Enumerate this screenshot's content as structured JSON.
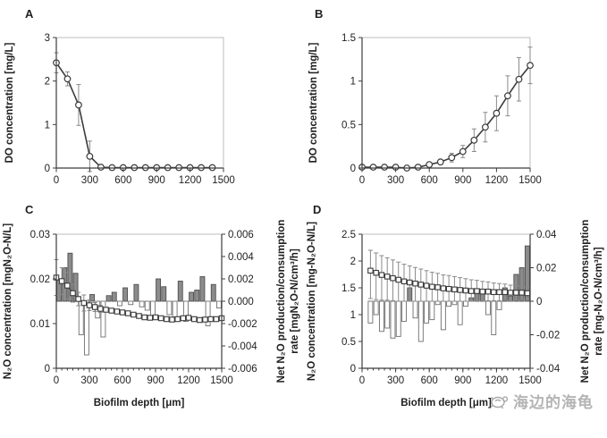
{
  "watermark": {
    "text": "海边的海龟"
  },
  "colors": {
    "line": "#3b3b3b",
    "marker_fill": "#ffffff",
    "error": "#8a8a8a",
    "bar_dark_fill": "#8c8c8c",
    "bar_dark_stroke": "#4f4f4f",
    "bar_light_fill": "#ffffff",
    "bar_light_stroke": "#6e6e6e",
    "axis": "#3c3c3c",
    "box": "#bdbdbd",
    "text": "#1f1f1f",
    "watermark": "#a8a8a8"
  },
  "chart_data": [
    {
      "id": "A",
      "panel_label": "A",
      "type": "line",
      "xlim": [
        0,
        1500
      ],
      "x_ticks": [
        0,
        300,
        600,
        900,
        1200,
        1500
      ],
      "x_tick_labels": [
        "0",
        "300",
        "600",
        "900",
        "1200",
        "1500"
      ],
      "xlabel": "",
      "left": {
        "label": "DO concentration [mg/L]",
        "lim": [
          0,
          3
        ],
        "ticks": [
          0,
          1,
          2,
          3
        ],
        "tick_labels": [
          "0",
          "1",
          "2",
          "3"
        ]
      },
      "marker": "circle",
      "line": {
        "x": [
          0,
          100,
          200,
          300,
          400,
          500,
          600,
          700,
          800,
          900,
          1000,
          1100,
          1200,
          1300,
          1400
        ],
        "y": [
          2.42,
          2.05,
          1.45,
          0.27,
          0.02,
          0.01,
          0.01,
          0.01,
          0.01,
          0.01,
          0.01,
          0.01,
          0.01,
          0.01,
          0.01
        ],
        "yerr": [
          0.23,
          0.16,
          0.47,
          0.35,
          0,
          0,
          0,
          0,
          0,
          0,
          0,
          0,
          0,
          0,
          0
        ]
      }
    },
    {
      "id": "B",
      "panel_label": "B",
      "type": "line",
      "xlim": [
        0,
        1500
      ],
      "x_ticks": [
        0,
        300,
        600,
        900,
        1200,
        1500
      ],
      "x_tick_labels": [
        "0",
        "300",
        "600",
        "900",
        "1200",
        "1500"
      ],
      "xlabel": "",
      "left": {
        "label": "DO concentration [mg/L]",
        "lim": [
          0,
          1.5
        ],
        "ticks": [
          0,
          0.5,
          1,
          1.5
        ],
        "tick_labels": [
          "0",
          "0.5",
          "1",
          "1.5"
        ]
      },
      "marker": "circle",
      "line": {
        "x": [
          0,
          100,
          200,
          300,
          400,
          500,
          600,
          700,
          800,
          900,
          1000,
          1100,
          1200,
          1300,
          1400,
          1500
        ],
        "y": [
          0.01,
          0.01,
          0.01,
          0.01,
          0.0,
          0.01,
          0.04,
          0.07,
          0.12,
          0.19,
          0.32,
          0.47,
          0.63,
          0.83,
          1.02,
          1.18
        ],
        "yerr": [
          0,
          0,
          0,
          0,
          0,
          0,
          0.01,
          0.02,
          0.05,
          0.07,
          0.13,
          0.17,
          0.2,
          0.23,
          0.25,
          0.21
        ]
      }
    },
    {
      "id": "C",
      "panel_label": "C",
      "type": "line+bar",
      "xlim": [
        0,
        1500
      ],
      "x_ticks": [
        0,
        300,
        600,
        900,
        1200,
        1500
      ],
      "x_tick_labels": [
        "0",
        "300",
        "600",
        "900",
        "1200",
        "1500"
      ],
      "x_minor_step": 50,
      "xlabel": "Biofilm depth [μm]",
      "left": {
        "label": "N₂O concentration [mgN₂O-N/L]",
        "lim": [
          0,
          0.03
        ],
        "ticks": [
          0,
          0.01,
          0.02,
          0.03
        ],
        "tick_labels": [
          "0",
          "0.01",
          "0.02",
          "0.03"
        ]
      },
      "right": {
        "label_lines": [
          "Net N₂O production/consumption",
          "rate [mgN₂O-N/cm³/h]"
        ],
        "lim": [
          -0.006,
          0.006
        ],
        "ticks": [
          0.006,
          0.004,
          0.002,
          0,
          -0.002,
          -0.004,
          -0.006
        ],
        "tick_labels": [
          "0.006",
          "0.004",
          "0.002",
          "0.000",
          "-0.002",
          "-0.004",
          "-0.006"
        ]
      },
      "marker": "square",
      "line": {
        "x": [
          0,
          50,
          100,
          150,
          200,
          250,
          300,
          350,
          400,
          450,
          500,
          550,
          600,
          650,
          700,
          750,
          800,
          850,
          900,
          950,
          1000,
          1050,
          1100,
          1150,
          1200,
          1250,
          1300,
          1350,
          1400,
          1450,
          1500
        ],
        "y": [
          0.0203,
          0.0195,
          0.0185,
          0.0168,
          0.0155,
          0.0146,
          0.0141,
          0.0137,
          0.0133,
          0.0131,
          0.0129,
          0.0127,
          0.0125,
          0.0123,
          0.012,
          0.0117,
          0.0114,
          0.0113,
          0.0114,
          0.0112,
          0.011,
          0.0109,
          0.011,
          0.0112,
          0.0113,
          0.011,
          0.0108,
          0.0109,
          0.011,
          0.011,
          0.0112
        ],
        "yerr": [
          0.004,
          0.003,
          0.003,
          0.002,
          0.0015,
          0.0018,
          0.0012,
          0.001,
          0.0008,
          0,
          0,
          0,
          0,
          0,
          0,
          0,
          0,
          0,
          0,
          0,
          0,
          0,
          0,
          0,
          0,
          0,
          0,
          0,
          0,
          0,
          0
        ]
      },
      "bars": {
        "axis": "right",
        "x": [
          25,
          75,
          125,
          175,
          225,
          275,
          325,
          375,
          425,
          475,
          525,
          575,
          625,
          675,
          725,
          775,
          825,
          875,
          925,
          975,
          1025,
          1075,
          1125,
          1175,
          1225,
          1275,
          1325,
          1375,
          1425,
          1475
        ],
        "values": [
          0.002,
          0.003,
          0.0043,
          0.0025,
          -0.003,
          -0.0048,
          0.0006,
          -0.0015,
          -0.0032,
          0.0005,
          0.0008,
          -0.0004,
          0.0012,
          -0.0003,
          0.0015,
          -0.0005,
          -0.0008,
          -0.0015,
          0.002,
          0.0013,
          -0.0012,
          -0.0014,
          0.0018,
          -0.0018,
          0.0008,
          0.001,
          0.0022,
          -0.0022,
          0.0015,
          -0.0006
        ]
      }
    },
    {
      "id": "D",
      "panel_label": "D",
      "type": "line+bar",
      "xlim": [
        0,
        1500
      ],
      "x_ticks": [
        0,
        300,
        600,
        900,
        1200,
        1500
      ],
      "x_tick_labels": [
        "0",
        "300",
        "600",
        "900",
        "1200",
        "1500"
      ],
      "x_minor_step": 50,
      "xlabel": "Biofilm depth [μm]",
      "left": {
        "label": "N₂O concentration [mg-N₂O-N/L]",
        "lim": [
          0,
          2.5
        ],
        "ticks": [
          0,
          0.5,
          1,
          1.5,
          2,
          2.5
        ],
        "tick_labels": [
          "0",
          "0.5",
          "1",
          "1.5",
          "2",
          "2.5"
        ]
      },
      "right": {
        "label_lines": [
          "Net N₂O production/consumption",
          "rate [mg-N₂O-N/cm³/h]"
        ],
        "lim": [
          -0.04,
          0.04
        ],
        "ticks": [
          0.04,
          0.02,
          0,
          -0.02,
          -0.04
        ],
        "tick_labels": [
          "0.04",
          "0.02",
          "0",
          "-0.02",
          "-0.04"
        ]
      },
      "marker": "square",
      "line": {
        "x": [
          75,
          125,
          175,
          225,
          275,
          325,
          375,
          425,
          475,
          525,
          575,
          625,
          675,
          725,
          775,
          825,
          875,
          925,
          975,
          1025,
          1075,
          1125,
          1175,
          1225,
          1275,
          1325,
          1375,
          1425,
          1475
        ],
        "y": [
          1.82,
          1.78,
          1.74,
          1.71,
          1.68,
          1.65,
          1.62,
          1.6,
          1.58,
          1.56,
          1.54,
          1.52,
          1.51,
          1.49,
          1.48,
          1.47,
          1.46,
          1.45,
          1.44,
          1.44,
          1.43,
          1.43,
          1.42,
          1.42,
          1.42,
          1.41,
          1.41,
          1.41,
          1.4
        ],
        "yerr": [
          0.38,
          0.37,
          0.36,
          0.35,
          0.34,
          0.33,
          0.32,
          0.31,
          0.3,
          0.29,
          0.28,
          0.27,
          0.26,
          0.25,
          0.25,
          0.24,
          0.23,
          0.22,
          0.21,
          0.2,
          0.19,
          0.18,
          0.17,
          0.16,
          0.15,
          0.14,
          0.13,
          0.12,
          0.11
        ],
        "yerr_lo": [
          0.52,
          0.5,
          0.47,
          0.44,
          0.42,
          0.4,
          0.37,
          0.35,
          0.33,
          0.31,
          0.29,
          0.27,
          0.26,
          0.24,
          0.23,
          0.22,
          0.21,
          0.2,
          0.19,
          0.18,
          0.17,
          0.17,
          0.16,
          0.16,
          0.15,
          0.15,
          0.14,
          0.14,
          0.13
        ]
      },
      "bars": {
        "axis": "right",
        "x": [
          75,
          125,
          175,
          225,
          275,
          325,
          375,
          425,
          475,
          525,
          575,
          625,
          675,
          725,
          775,
          825,
          875,
          925,
          975,
          1025,
          1075,
          1125,
          1175,
          1225,
          1275,
          1325,
          1375,
          1425,
          1475
        ],
        "values": [
          -0.013,
          -0.008,
          -0.018,
          -0.016,
          -0.022,
          -0.021,
          -0.012,
          0.008,
          -0.01,
          -0.024,
          -0.013,
          -0.011,
          -0.002,
          -0.017,
          -0.003,
          -0.002,
          -0.014,
          -0.003,
          0.002,
          0.005,
          0.007,
          -0.008,
          -0.02,
          -0.005,
          0.008,
          0.003,
          0.016,
          0.02,
          0.033
        ]
      }
    }
  ]
}
